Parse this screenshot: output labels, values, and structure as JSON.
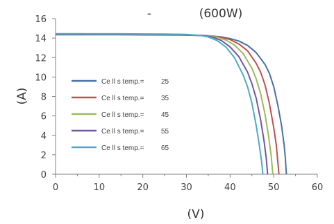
{
  "chart_data": {
    "type": "line",
    "title_left": "-",
    "title_right": "(600W)",
    "xlabel": "(V)",
    "ylabel": "(A)",
    "xlim": [
      0,
      60
    ],
    "ylim": [
      0,
      16
    ],
    "x_ticks": [
      0,
      10,
      20,
      30,
      40,
      50,
      60
    ],
    "y_ticks": [
      0,
      2,
      4,
      6,
      8,
      10,
      12,
      14,
      16
    ],
    "grid": false,
    "legend_position": "left",
    "series": [
      {
        "name": "Ce ll s temp.=",
        "value_label": "25",
        "color": "#4a6fa5",
        "points": [
          [
            0,
            14.35
          ],
          [
            5,
            14.35
          ],
          [
            10,
            14.34
          ],
          [
            15,
            14.34
          ],
          [
            20,
            14.33
          ],
          [
            25,
            14.32
          ],
          [
            30,
            14.3
          ],
          [
            35,
            14.25
          ],
          [
            38,
            14.12
          ],
          [
            40,
            13.95
          ],
          [
            42,
            13.7
          ],
          [
            44,
            13.25
          ],
          [
            46,
            12.5
          ],
          [
            48,
            11.3
          ],
          [
            49,
            10.4
          ],
          [
            50,
            9.0
          ],
          [
            51,
            7.0
          ],
          [
            51.8,
            5.0
          ],
          [
            52.4,
            3.0
          ],
          [
            52.7,
            1.5
          ],
          [
            52.9,
            0
          ]
        ]
      },
      {
        "name": "Ce ll s temp.=",
        "value_label": "35",
        "color": "#c0504d",
        "points": [
          [
            0,
            14.38
          ],
          [
            5,
            14.38
          ],
          [
            10,
            14.37
          ],
          [
            15,
            14.37
          ],
          [
            20,
            14.36
          ],
          [
            25,
            14.35
          ],
          [
            30,
            14.32
          ],
          [
            35,
            14.25
          ],
          [
            38,
            14.08
          ],
          [
            40,
            13.85
          ],
          [
            42,
            13.4
          ],
          [
            44,
            12.7
          ],
          [
            46,
            11.4
          ],
          [
            47,
            10.5
          ],
          [
            48,
            9.2
          ],
          [
            49,
            7.3
          ],
          [
            50,
            4.8
          ],
          [
            50.6,
            3.0
          ],
          [
            50.9,
            1.5
          ],
          [
            51.2,
            0
          ]
        ]
      },
      {
        "name": "Ce ll s temp.=",
        "value_label": "45",
        "color": "#9bbb59",
        "points": [
          [
            0,
            14.4
          ],
          [
            5,
            14.4
          ],
          [
            10,
            14.39
          ],
          [
            15,
            14.39
          ],
          [
            20,
            14.38
          ],
          [
            25,
            14.37
          ],
          [
            30,
            14.34
          ],
          [
            35,
            14.24
          ],
          [
            37,
            14.1
          ],
          [
            39,
            13.8
          ],
          [
            41,
            13.3
          ],
          [
            43,
            12.4
          ],
          [
            45,
            10.9
          ],
          [
            46,
            9.8
          ],
          [
            47,
            8.3
          ],
          [
            48,
            6.2
          ],
          [
            48.8,
            4.0
          ],
          [
            49.4,
            2.0
          ],
          [
            49.8,
            0
          ]
        ]
      },
      {
        "name": "Ce ll s temp.=",
        "value_label": "55",
        "color": "#7456a0",
        "points": [
          [
            0,
            14.42
          ],
          [
            5,
            14.42
          ],
          [
            10,
            14.41
          ],
          [
            15,
            14.41
          ],
          [
            20,
            14.4
          ],
          [
            25,
            14.39
          ],
          [
            30,
            14.36
          ],
          [
            34,
            14.26
          ],
          [
            36,
            14.1
          ],
          [
            38,
            13.75
          ],
          [
            40,
            13.1
          ],
          [
            42,
            12.1
          ],
          [
            44,
            10.5
          ],
          [
            45,
            9.3
          ],
          [
            46,
            7.8
          ],
          [
            47,
            5.6
          ],
          [
            47.8,
            3.4
          ],
          [
            48.3,
            1.6
          ],
          [
            48.6,
            0
          ]
        ]
      },
      {
        "name": "Ce ll s temp.=",
        "value_label": "65",
        "color": "#4bacc6",
        "points": [
          [
            0,
            14.45
          ],
          [
            5,
            14.45
          ],
          [
            10,
            14.44
          ],
          [
            15,
            14.44
          ],
          [
            20,
            14.43
          ],
          [
            25,
            14.42
          ],
          [
            30,
            14.38
          ],
          [
            33,
            14.28
          ],
          [
            35,
            14.12
          ],
          [
            37,
            13.75
          ],
          [
            39,
            13.1
          ],
          [
            41,
            12.0
          ],
          [
            43,
            10.2
          ],
          [
            44,
            9.0
          ],
          [
            45,
            7.3
          ],
          [
            46,
            5.0
          ],
          [
            46.7,
            3.0
          ],
          [
            47.2,
            1.4
          ],
          [
            47.5,
            0
          ]
        ]
      }
    ]
  }
}
